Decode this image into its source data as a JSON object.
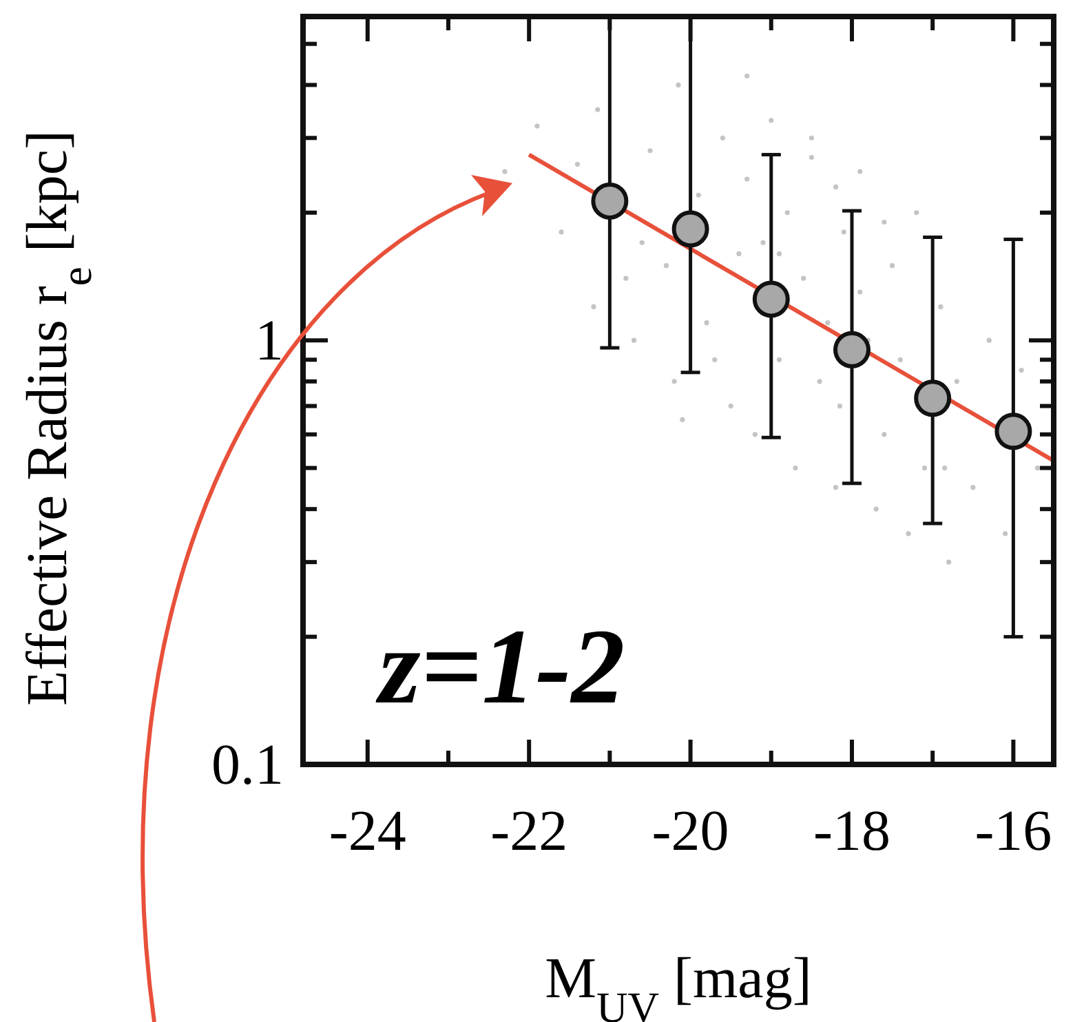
{
  "chart_data": {
    "type": "scatter",
    "xlabel": "M$_{UV}$ [mag]",
    "ylabel": "Effective Radius r$_{e}$ [kpc]",
    "log": "y",
    "xlim": [
      -24.8,
      -15.5
    ],
    "ylim": [
      0.1,
      5.8
    ],
    "xticks": [
      -24,
      {
        "value": -23,
        "label": null
      },
      -22,
      {
        "value": -21,
        "label": null
      },
      -20,
      {
        "value": -19,
        "label": null
      },
      -18,
      {
        "value": -17,
        "label": null
      },
      -16
    ],
    "yticks": [
      0.1,
      {
        "value": 0.2,
        "label": null
      },
      {
        "value": 0.3,
        "label": null
      },
      {
        "value": 0.4,
        "label": null
      },
      {
        "value": 0.5,
        "label": null
      },
      {
        "value": 0.6,
        "label": null
      },
      {
        "value": 0.7,
        "label": null
      },
      {
        "value": 0.8,
        "label": null
      },
      {
        "value": 0.9,
        "label": null
      },
      1,
      {
        "value": 2,
        "label": null
      },
      {
        "value": 3,
        "label": null
      },
      {
        "value": 4,
        "label": null
      },
      {
        "value": 5,
        "label": null
      }
    ],
    "grid": false,
    "annotations": [
      "z=1-2"
    ],
    "series": [
      {
        "color": "#c4c4c4",
        "marker": "circle",
        "x": [
          -22.3,
          -21.9,
          -21.6,
          -21.4,
          -21.2,
          -21.15,
          -20.8,
          -20.7,
          -20.5,
          -20.3,
          -20.2,
          -20.15,
          -19.9,
          -19.8,
          -19.6,
          -19.5,
          -19.4,
          -19.3,
          -19.2,
          -19.1,
          -19.0,
          -18.9,
          -18.8,
          -18.7,
          -18.6,
          -18.5,
          -18.4,
          -18.3,
          -18.2,
          -18.1,
          -18.15,
          -17.9,
          -17.8,
          -17.7,
          -17.6,
          -17.5,
          -17.4,
          -17.3,
          -17.2,
          -17.1,
          -16.85,
          -16.9,
          -16.8,
          -16.7,
          -16.5,
          -16.3,
          -16.1,
          -15.9,
          -15.7,
          -20.6,
          -19.7,
          -18.9,
          -18.5,
          -17.9,
          -19.3,
          -20.1,
          -18.2,
          -17.6
        ],
        "values": [
          2.5,
          3.2,
          1.8,
          2.6,
          1.2,
          3.5,
          1.4,
          1.0,
          2.8,
          1.5,
          0.8,
          4.0,
          2.2,
          1.1,
          3.0,
          0.7,
          1.6,
          2.4,
          0.6,
          1.7,
          3.3,
          0.9,
          2.0,
          0.5,
          1.4,
          2.7,
          0.8,
          1.1,
          0.45,
          1.8,
          0.7,
          2.5,
          1.0,
          0.4,
          0.6,
          1.5,
          0.9,
          0.35,
          2.0,
          0.5,
          0.5,
          1.2,
          0.3,
          0.8,
          0.45,
          1.0,
          0.35,
          0.85,
          0.5,
          1.7,
          0.9,
          1.6,
          3.0,
          1.3,
          4.2,
          0.65,
          2.3,
          1.9
        ]
      },
      {
        "type": "line",
        "color": "#e8503a",
        "marker": "none",
        "x": [
          -22,
          -15.5
        ],
        "values": [
          2.74,
          0.52
        ]
      },
      {
        "color": "#a8a8a8",
        "marker": "circle",
        "x": [
          -21,
          -20,
          -19,
          -18,
          -17,
          -16
        ],
        "values": [
          2.13,
          1.83,
          1.25,
          0.95,
          0.73,
          0.61
        ],
        "errors": [
          [
            0.96,
            5.8
          ],
          [
            0.84,
            5.8
          ],
          [
            0.59,
            2.74
          ],
          [
            0.46,
            2.02
          ],
          [
            0.37,
            1.75
          ],
          [
            0.2,
            1.73
          ]
        ]
      }
    ]
  }
}
